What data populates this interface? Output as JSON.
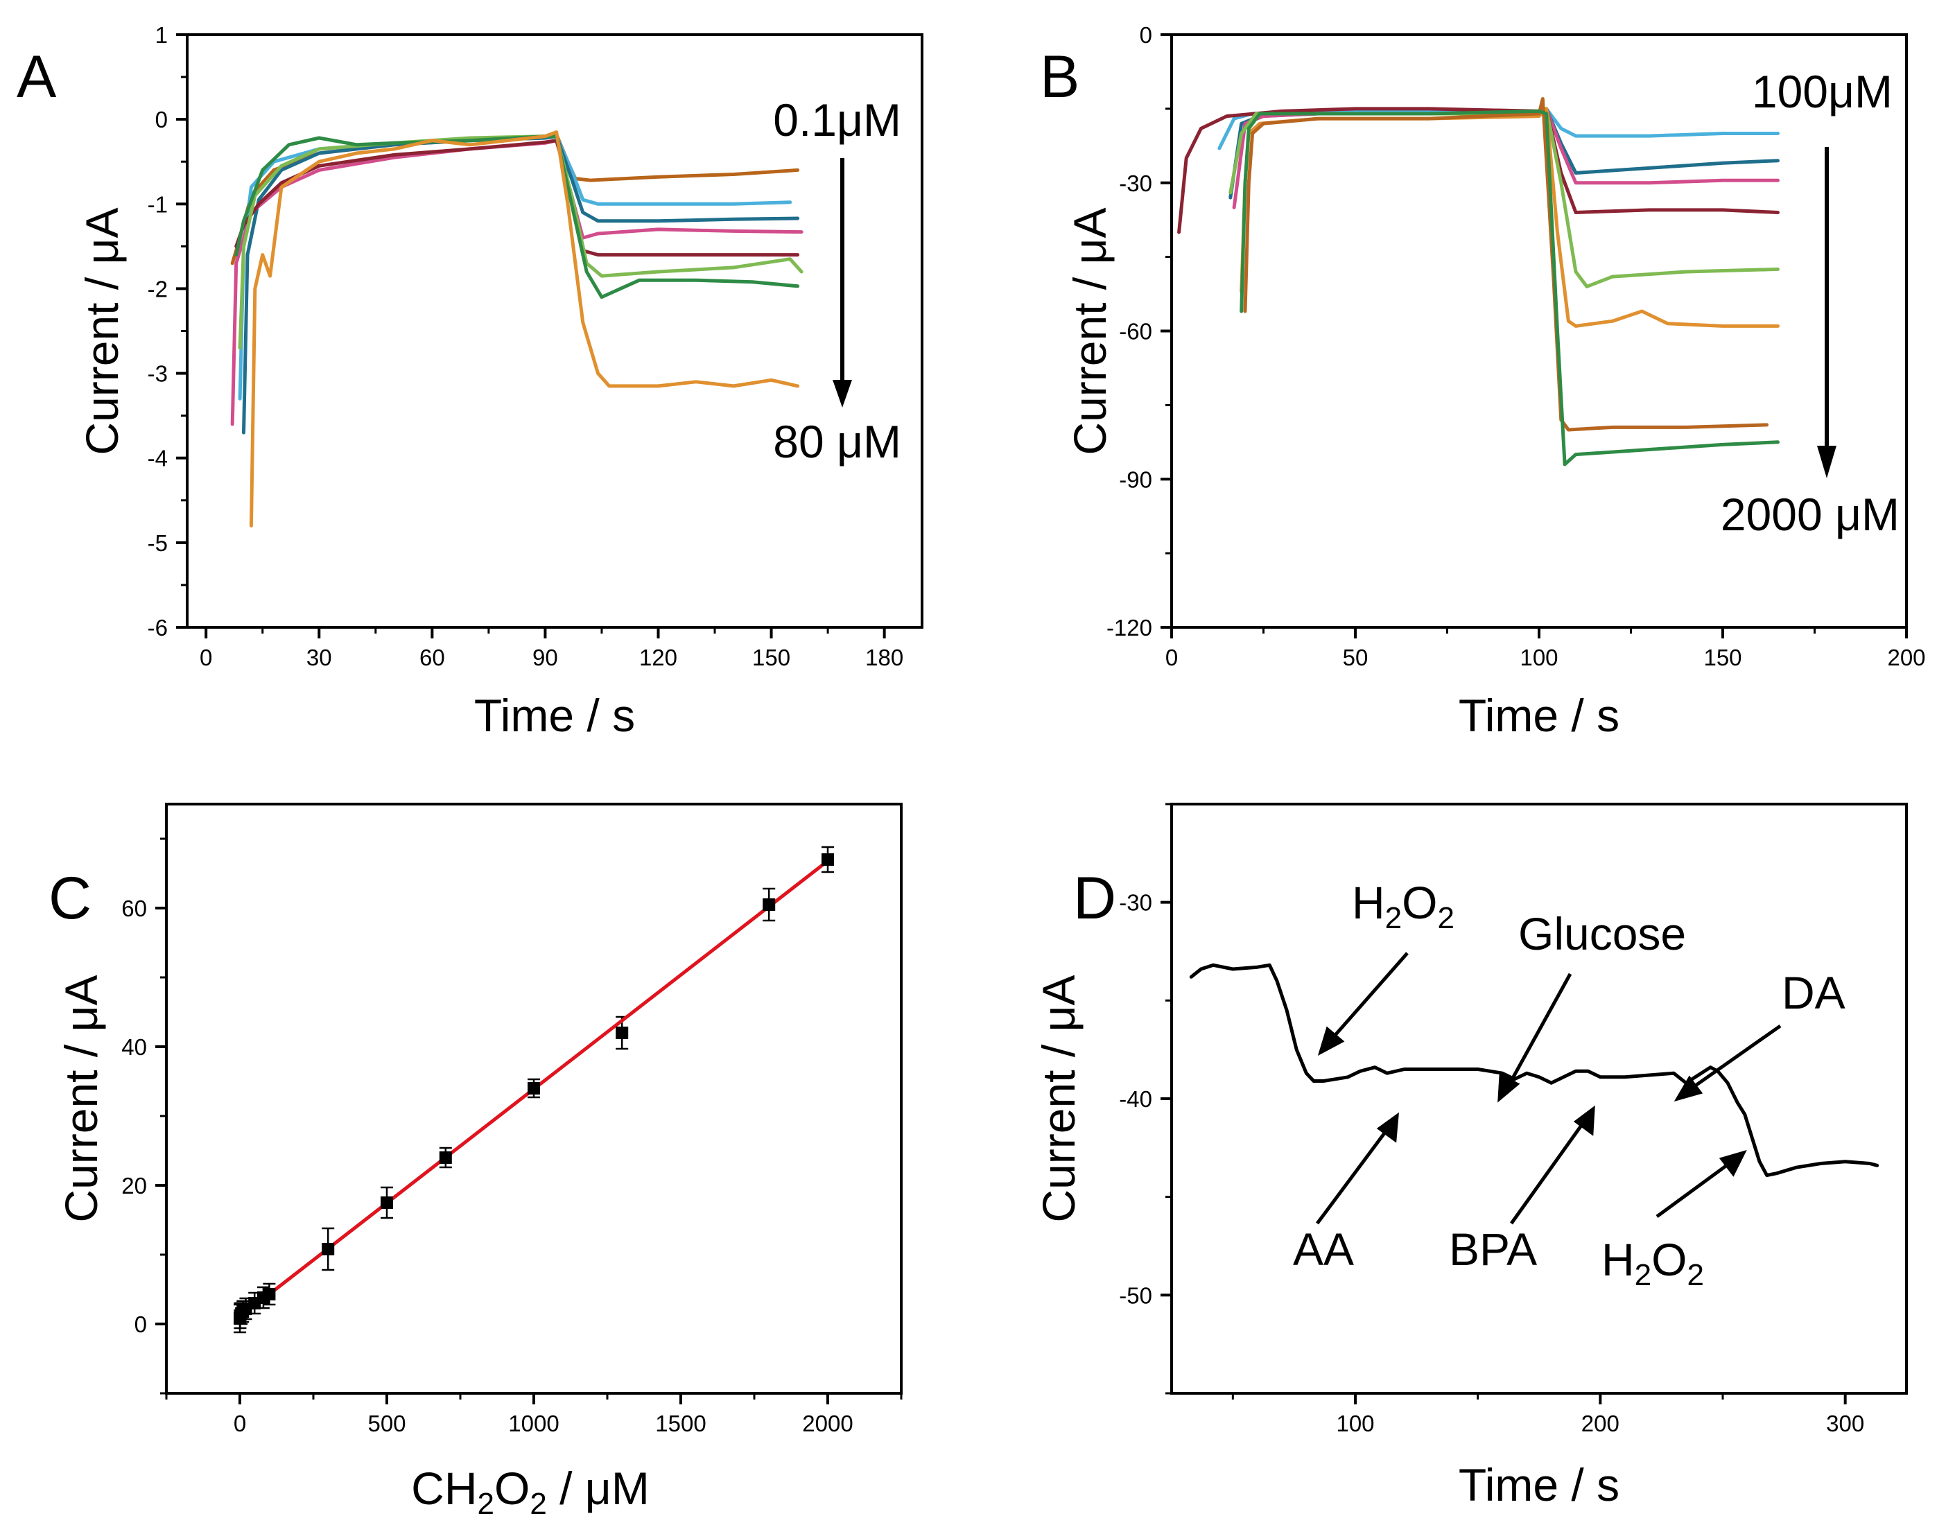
{
  "chart_data": [
    {
      "panel": "A",
      "type": "line",
      "xlabel": "Time / s",
      "ylabel": "Current / μA",
      "xlim": [
        -5,
        190
      ],
      "ylim": [
        -6,
        1
      ],
      "xticks": [
        0,
        30,
        60,
        90,
        120,
        150,
        180
      ],
      "yticks": [
        1,
        0,
        -1,
        -2,
        -3,
        -4,
        -5,
        -6
      ],
      "annotations": [
        {
          "text": "0.1μM"
        },
        {
          "text": "80 μM"
        }
      ],
      "series": [
        {
          "color": "#b8651a",
          "x": [
            7,
            9,
            12,
            18,
            30,
            50,
            70,
            90,
            93,
            96,
            98,
            102,
            120,
            140,
            157
          ],
          "y": [
            -1.7,
            -1.4,
            -0.9,
            -0.6,
            -0.4,
            -0.3,
            -0.25,
            -0.2,
            -0.18,
            -0.5,
            -0.7,
            -0.72,
            -0.68,
            -0.65,
            -0.6
          ]
        },
        {
          "color": "#4ab0dc",
          "x": [
            9,
            10,
            12,
            18,
            30,
            50,
            70,
            90,
            93,
            97,
            100,
            104,
            120,
            140,
            155
          ],
          "y": [
            -3.3,
            -1.5,
            -0.8,
            -0.5,
            -0.35,
            -0.28,
            -0.25,
            -0.22,
            -0.2,
            -0.6,
            -0.95,
            -1.0,
            -1.0,
            -1.0,
            -0.98
          ]
        },
        {
          "color": "#1f6e8c",
          "x": [
            10,
            11,
            14,
            20,
            30,
            50,
            70,
            90,
            93,
            97,
            100,
            104,
            120,
            140,
            157
          ],
          "y": [
            -3.7,
            -1.6,
            -0.95,
            -0.6,
            -0.4,
            -0.3,
            -0.25,
            -0.22,
            -0.2,
            -0.7,
            -1.1,
            -1.2,
            -1.2,
            -1.18,
            -1.17
          ]
        },
        {
          "color": "#d24d8c",
          "x": [
            7,
            8,
            12,
            20,
            30,
            50,
            70,
            90,
            93,
            97,
            100,
            104,
            120,
            140,
            158
          ],
          "y": [
            -3.6,
            -1.7,
            -1.1,
            -0.8,
            -0.6,
            -0.45,
            -0.35,
            -0.28,
            -0.25,
            -0.9,
            -1.4,
            -1.35,
            -1.3,
            -1.32,
            -1.33
          ]
        },
        {
          "color": "#8b2332",
          "x": [
            8,
            10,
            14,
            20,
            30,
            50,
            70,
            90,
            93,
            97,
            100,
            104,
            120,
            140,
            157
          ],
          "y": [
            -1.5,
            -1.25,
            -1.0,
            -0.75,
            -0.55,
            -0.42,
            -0.35,
            -0.27,
            -0.25,
            -0.9,
            -1.55,
            -1.6,
            -1.6,
            -1.6,
            -1.6
          ]
        },
        {
          "color": "#7fba52",
          "x": [
            9,
            10,
            13,
            20,
            30,
            50,
            70,
            90,
            93,
            97,
            101,
            105,
            120,
            140,
            155,
            158
          ],
          "y": [
            -2.7,
            -1.5,
            -0.9,
            -0.55,
            -0.35,
            -0.28,
            -0.22,
            -0.2,
            -0.2,
            -0.9,
            -1.7,
            -1.85,
            -1.8,
            -1.75,
            -1.65,
            -1.8
          ]
        },
        {
          "color": "#2e8b45",
          "x": [
            8,
            10,
            15,
            22,
            30,
            40,
            50,
            70,
            90,
            93,
            97,
            101,
            105,
            115,
            130,
            145,
            157
          ],
          "y": [
            -1.6,
            -1.2,
            -0.6,
            -0.3,
            -0.22,
            -0.3,
            -0.28,
            -0.25,
            -0.2,
            -0.2,
            -1.0,
            -1.8,
            -2.1,
            -1.9,
            -1.9,
            -1.92,
            -1.97
          ]
        },
        {
          "color": "#e0902f",
          "x": [
            12,
            13,
            15,
            17,
            20,
            30,
            40,
            50,
            60,
            70,
            80,
            90,
            93,
            96,
            100,
            104,
            107,
            120,
            130,
            140,
            150,
            157
          ],
          "y": [
            -4.8,
            -2.0,
            -1.6,
            -1.85,
            -0.8,
            -0.5,
            -0.4,
            -0.35,
            -0.25,
            -0.3,
            -0.25,
            -0.2,
            -0.15,
            -1.0,
            -2.4,
            -3.0,
            -3.15,
            -3.15,
            -3.1,
            -3.15,
            -3.08,
            -3.15
          ]
        }
      ]
    },
    {
      "panel": "B",
      "type": "line",
      "xlabel": "Time / s",
      "ylabel": "Current / μA",
      "xlim": [
        0,
        200
      ],
      "ylim": [
        -120,
        0
      ],
      "xticks": [
        0,
        50,
        100,
        150,
        200
      ],
      "yticks": [
        0,
        -30,
        -60,
        -90,
        -120
      ],
      "annotations": [
        {
          "text": "100μM"
        },
        {
          "text": "2000 μM"
        }
      ],
      "series": [
        {
          "color": "#4ab0dc",
          "x": [
            13,
            17,
            22,
            40,
            70,
            100,
            102,
            106,
            110,
            130,
            150,
            165
          ],
          "y": [
            -23,
            -17,
            -16,
            -15.5,
            -15.5,
            -16,
            -15,
            -19,
            -20.5,
            -20.5,
            -20,
            -20
          ]
        },
        {
          "color": "#1f6e8c",
          "x": [
            16,
            19,
            24,
            40,
            70,
            100,
            102,
            106,
            110,
            130,
            150,
            165
          ],
          "y": [
            -33,
            -18,
            -16.5,
            -16,
            -16,
            -16,
            -15,
            -22,
            -28,
            -27,
            -26,
            -25.5
          ]
        },
        {
          "color": "#d24d8c",
          "x": [
            17,
            20,
            25,
            40,
            70,
            100,
            102,
            106,
            110,
            130,
            150,
            165
          ],
          "y": [
            -35,
            -18,
            -16.5,
            -16,
            -16,
            -16,
            -15,
            -23,
            -30,
            -30,
            -29.5,
            -29.5
          ]
        },
        {
          "color": "#8b2332",
          "x": [
            2,
            4,
            8,
            15,
            30,
            50,
            70,
            100,
            102,
            106,
            110,
            130,
            150,
            165
          ],
          "y": [
            -40,
            -25,
            -19,
            -16.5,
            -15.5,
            -15,
            -15,
            -15.5,
            -15,
            -28,
            -36,
            -35.5,
            -35.5,
            -36
          ]
        },
        {
          "color": "#7fba52",
          "x": [
            16,
            19,
            23,
            40,
            70,
            100,
            102,
            106,
            110,
            113,
            120,
            140,
            165
          ],
          "y": [
            -32,
            -20,
            -16,
            -16,
            -16,
            -16,
            -15,
            -30,
            -48,
            -51,
            -49,
            -48,
            -47.5
          ]
        },
        {
          "color": "#e0902f",
          "x": [
            19,
            20,
            21,
            24,
            40,
            70,
            100,
            102,
            105,
            108,
            110,
            120,
            128,
            135,
            150,
            165
          ],
          "y": [
            -52,
            -30,
            -20,
            -18,
            -17,
            -17,
            -16.5,
            -15,
            -40,
            -58,
            -59,
            -58,
            -56,
            -58.5,
            -59,
            -59
          ]
        },
        {
          "color": "#b86520",
          "x": [
            20,
            21,
            22,
            25,
            40,
            70,
            100,
            101,
            104,
            106,
            108,
            120,
            140,
            162
          ],
          "y": [
            -56,
            -30,
            -20,
            -18,
            -17,
            -17,
            -16,
            -13,
            -50,
            -78,
            -80,
            -79.5,
            -79.5,
            -79
          ]
        },
        {
          "color": "#2e8b45",
          "x": [
            19,
            20,
            21,
            24,
            40,
            70,
            100,
            102,
            105,
            107,
            110,
            130,
            150,
            165
          ],
          "y": [
            -56,
            -30,
            -19,
            -16,
            -16,
            -16,
            -15.5,
            -16,
            -60,
            -87,
            -85,
            -84,
            -83,
            -82.5
          ]
        }
      ]
    },
    {
      "panel": "C",
      "type": "scatter",
      "xlabel": "CH2O2 / μM",
      "ylabel": "Current / μA",
      "xlim": [
        -250,
        2250
      ],
      "ylim": [
        -10,
        75
      ],
      "xticks": [
        0,
        500,
        1000,
        1500,
        2000
      ],
      "yticks": [
        0,
        20,
        40,
        60
      ],
      "points": [
        {
          "x": 0.1,
          "y": 0.8,
          "err": 2.0
        },
        {
          "x": 1,
          "y": 1.2,
          "err": 1.8
        },
        {
          "x": 5,
          "y": 1.5,
          "err": 1.5
        },
        {
          "x": 10,
          "y": 1.8,
          "err": 1.5
        },
        {
          "x": 20,
          "y": 2.2,
          "err": 1.5
        },
        {
          "x": 50,
          "y": 3.0,
          "err": 1.5
        },
        {
          "x": 80,
          "y": 3.8,
          "err": 1.5
        },
        {
          "x": 100,
          "y": 4.3,
          "err": 1.5
        },
        {
          "x": 300,
          "y": 10.8,
          "err": 3.0
        },
        {
          "x": 500,
          "y": 17.5,
          "err": 2.2
        },
        {
          "x": 700,
          "y": 24.0,
          "err": 1.4
        },
        {
          "x": 1000,
          "y": 34.0,
          "err": 1.3
        },
        {
          "x": 1300,
          "y": 42.0,
          "err": 2.3
        },
        {
          "x": 1800,
          "y": 60.5,
          "err": 2.3
        },
        {
          "x": 2000,
          "y": 67.0,
          "err": 1.8
        }
      ],
      "fit": {
        "color": "#e0141e",
        "x": [
          0,
          2000
        ],
        "y": [
          1.0,
          66.8
        ]
      }
    },
    {
      "panel": "D",
      "type": "line",
      "xlabel": "Time / s",
      "ylabel": "Current / μA",
      "xlim": [
        25,
        325
      ],
      "ylim": [
        -55,
        -25
      ],
      "xticks": [
        100,
        200,
        300
      ],
      "yticks": [
        -30,
        -40,
        -50
      ],
      "annotations": [
        {
          "text": "H",
          "sub": "2",
          "text2": "O",
          "sub2": "2"
        },
        {
          "text": "Glucose"
        },
        {
          "text": "DA"
        },
        {
          "text": "AA"
        },
        {
          "text": "BPA"
        },
        {
          "text": "H",
          "sub": "2",
          "text2": "O",
          "sub2": "2"
        }
      ],
      "series": [
        {
          "color": "#000000",
          "x": [
            33,
            37,
            42,
            50,
            60,
            65,
            68,
            72,
            76,
            80,
            83,
            87,
            92,
            97,
            102,
            108,
            113,
            120,
            130,
            140,
            150,
            155,
            160,
            165,
            170,
            175,
            180,
            185,
            190,
            195,
            200,
            210,
            220,
            230,
            235,
            240,
            245,
            248,
            252,
            256,
            259,
            262,
            265,
            268,
            272,
            280,
            290,
            300,
            310,
            313
          ],
          "y": [
            -33.8,
            -33.4,
            -33.2,
            -33.4,
            -33.3,
            -33.2,
            -34.0,
            -35.5,
            -37.5,
            -38.7,
            -39.1,
            -39.1,
            -39.0,
            -38.9,
            -38.6,
            -38.4,
            -38.7,
            -38.5,
            -38.5,
            -38.5,
            -38.5,
            -38.6,
            -38.7,
            -39.0,
            -38.7,
            -38.9,
            -39.2,
            -38.9,
            -38.6,
            -38.6,
            -38.9,
            -38.9,
            -38.8,
            -38.7,
            -39.2,
            -38.8,
            -38.4,
            -38.6,
            -39.2,
            -40.2,
            -40.8,
            -42.0,
            -43.2,
            -43.9,
            -43.8,
            -43.5,
            -43.3,
            -43.2,
            -43.3,
            -43.4
          ]
        }
      ]
    }
  ]
}
